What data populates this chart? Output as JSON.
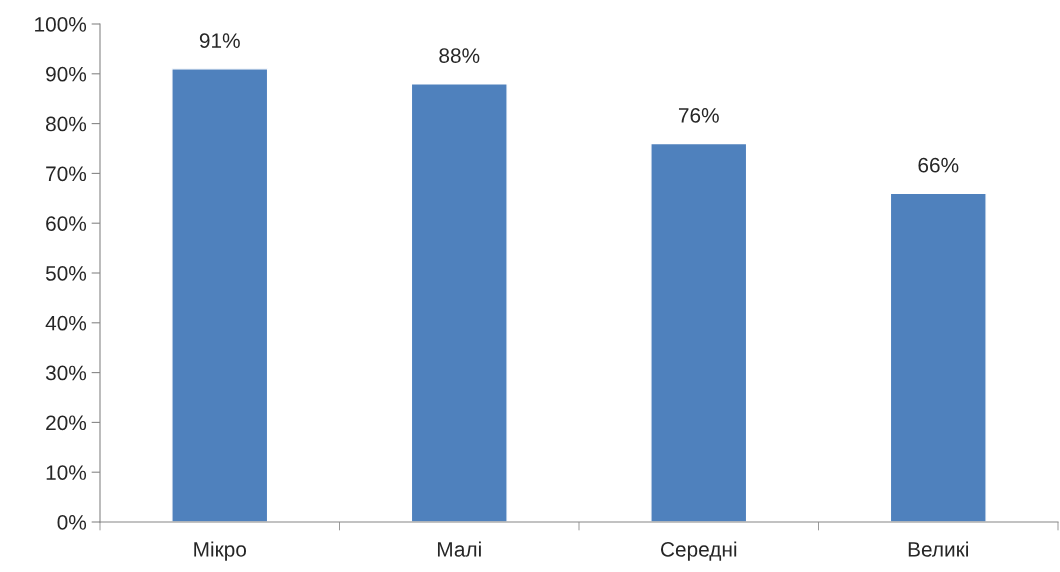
{
  "chart_data": {
    "type": "bar",
    "categories": [
      "Мікро",
      "Малі",
      "Середні",
      "Великі"
    ],
    "values": [
      91,
      88,
      76,
      66
    ],
    "value_labels": [
      "91%",
      "88%",
      "76%",
      "66%"
    ],
    "color": "#4f81bd",
    "ylim": [
      0,
      100
    ],
    "yticks": [
      {
        "value": 0,
        "label": "0%"
      },
      {
        "value": 10,
        "label": "10%"
      },
      {
        "value": 20,
        "label": "20%"
      },
      {
        "value": 30,
        "label": "30%"
      },
      {
        "value": 40,
        "label": "40%"
      },
      {
        "value": 50,
        "label": "50%"
      },
      {
        "value": 60,
        "label": "60%"
      },
      {
        "value": 70,
        "label": "70%"
      },
      {
        "value": 80,
        "label": "80%"
      },
      {
        "value": 90,
        "label": "90%"
      },
      {
        "value": 100,
        "label": "100%"
      }
    ],
    "grid": false,
    "legend": false
  }
}
